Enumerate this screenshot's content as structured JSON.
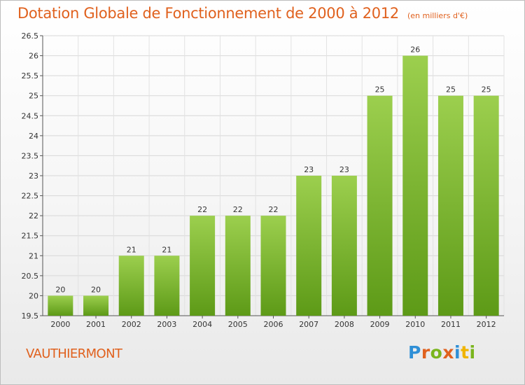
{
  "title": "Dotation Globale de Fonctionnement de 2000 à 2012",
  "subtitle": "(en milliers d'€)",
  "commune": "VAUTHIERMONT",
  "logo": {
    "letters": [
      {
        "ch": "P",
        "color": "#2f8fd6"
      },
      {
        "ch": "r",
        "color": "#e0611e"
      },
      {
        "ch": "o",
        "color": "#7ab51d"
      },
      {
        "ch": "x",
        "color": "#e0611e"
      },
      {
        "ch": "i",
        "color": "#2f8fd6"
      },
      {
        "ch": "t",
        "color": "#f0b400"
      },
      {
        "ch": "i",
        "color": "#7ab51d"
      }
    ]
  },
  "chart_data": {
    "type": "bar",
    "categories": [
      "2000",
      "2001",
      "2002",
      "2003",
      "2004",
      "2005",
      "2006",
      "2007",
      "2008",
      "2009",
      "2010",
      "2011",
      "2012"
    ],
    "values": [
      20,
      20,
      21,
      21,
      22,
      22,
      22,
      23,
      23,
      25,
      26,
      25,
      25
    ],
    "data_labels": [
      "20",
      "20",
      "21",
      "21",
      "22",
      "22",
      "22",
      "23",
      "23",
      "25",
      "26",
      "25",
      "25"
    ],
    "ylim": [
      19.5,
      26.5
    ],
    "yticks": [
      19.5,
      20,
      20.5,
      21,
      21.5,
      22,
      22.5,
      23,
      23.5,
      24,
      24.5,
      25,
      25.5,
      26,
      26.5
    ],
    "grid": true,
    "bar_color_top": "#9ccf4e",
    "bar_color_bottom": "#5d9a17"
  }
}
